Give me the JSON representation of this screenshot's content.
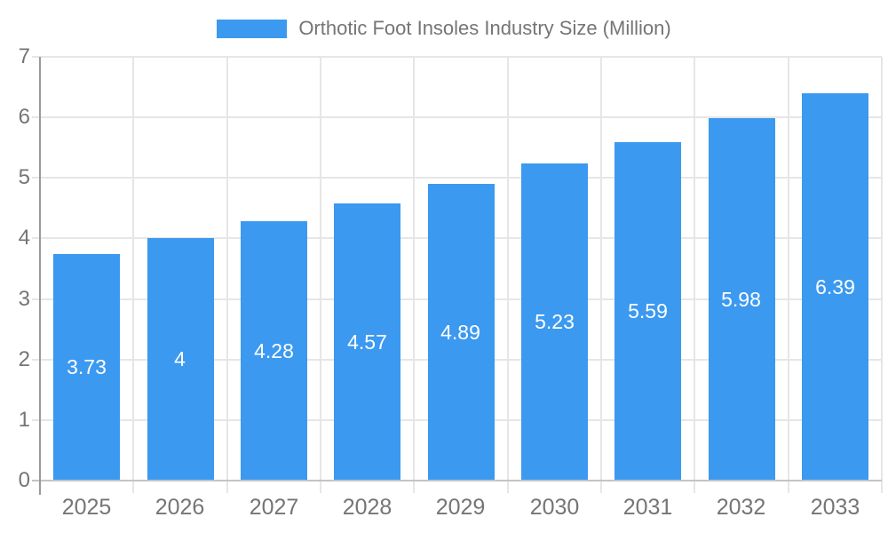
{
  "legend": {
    "label": "Orthotic Foot Insoles Industry Size (Million)"
  },
  "colors": {
    "bar": "#3b99f0",
    "legend_text": "#757575",
    "axis_label_text": "#757575",
    "bar_label_text": "#ffffff",
    "gridline": "#e6e6e6",
    "y_axis_line": "#9a9a9a",
    "x_axis_line": "#c4c4c4",
    "background": "#ffffff"
  },
  "chart_data": {
    "type": "bar",
    "title": "Orthotic Foot Insoles Industry Size (Million)",
    "categories": [
      "2025",
      "2026",
      "2027",
      "2028",
      "2029",
      "2030",
      "2031",
      "2032",
      "2033"
    ],
    "values": [
      3.73,
      4,
      4.28,
      4.57,
      4.89,
      5.23,
      5.59,
      5.98,
      6.39
    ],
    "bar_labels": [
      "3.73",
      "4",
      "4.28",
      "4.57",
      "4.89",
      "5.23",
      "5.59",
      "5.98",
      "6.39"
    ],
    "xlabel": "",
    "ylabel": "",
    "ylim": [
      0,
      7
    ],
    "yticks": [
      0,
      1,
      2,
      3,
      4,
      5,
      6,
      7
    ],
    "grid": true,
    "vertical_grid": true,
    "legend_position": "top",
    "bar_value_label_position": "center"
  }
}
